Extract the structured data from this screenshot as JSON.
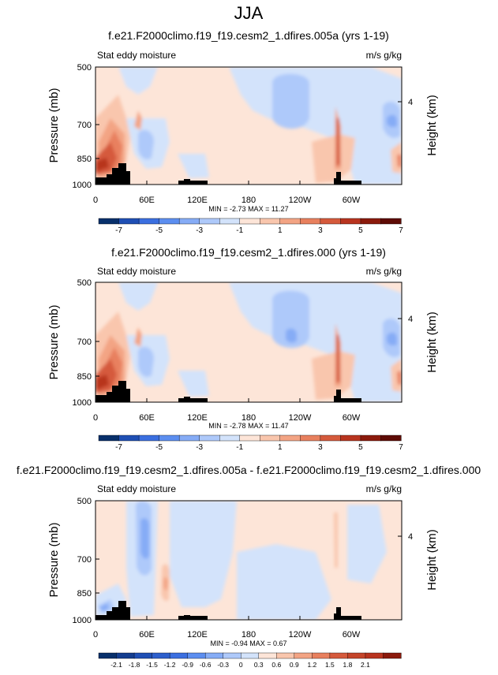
{
  "page_title": "JJA",
  "chart_data": [
    {
      "type": "heatmap",
      "title": "f.e21.F2000climo.f19_f19.cesm2_1.dfires.005a (yrs 1-19)",
      "left_label": "Stat eddy moisture",
      "right_label": "m/s g/kg",
      "ylabel": "Pressure (mb)",
      "ylabel_right": "Height (km)",
      "y_ticks": [
        "500",
        "700",
        "850",
        "1000"
      ],
      "y_right_ticks": [
        "4"
      ],
      "x_ticks": [
        "0",
        "60E",
        "120E",
        "180",
        "120W",
        "60W"
      ],
      "min_max_text": "MIN = -2.73  MAX = 11.27",
      "colorbar_labels": [
        "-7",
        "-5",
        "-3",
        "-1",
        "1",
        "3",
        "5",
        "7"
      ],
      "colorbar_colors": [
        "#08306b",
        "#1f4fb4",
        "#3b6fe0",
        "#5c8ef0",
        "#86acf6",
        "#aec9fa",
        "#d3e3fb",
        "#fde5d8",
        "#f9c6ad",
        "#f3a484",
        "#e8805e",
        "#d55a3c",
        "#b8341f",
        "#8b1a0c",
        "#5e0b05"
      ]
    },
    {
      "type": "heatmap",
      "title": "f.e21.F2000climo.f19_f19.cesm2_1.dfires.000 (yrs 1-19)",
      "left_label": "Stat eddy moisture",
      "right_label": "m/s g/kg",
      "ylabel": "Pressure (mb)",
      "ylabel_right": "Height (km)",
      "y_ticks": [
        "500",
        "700",
        "850",
        "1000"
      ],
      "y_right_ticks": [
        "4"
      ],
      "x_ticks": [
        "0",
        "60E",
        "120E",
        "180",
        "120W",
        "60W"
      ],
      "min_max_text": "MIN = -2.78  MAX = 11.47",
      "colorbar_labels": [
        "-7",
        "-5",
        "-3",
        "-1",
        "1",
        "3",
        "5",
        "7"
      ],
      "colorbar_colors": [
        "#08306b",
        "#1f4fb4",
        "#3b6fe0",
        "#5c8ef0",
        "#86acf6",
        "#aec9fa",
        "#d3e3fb",
        "#fde5d8",
        "#f9c6ad",
        "#f3a484",
        "#e8805e",
        "#d55a3c",
        "#b8341f",
        "#8b1a0c",
        "#5e0b05"
      ]
    },
    {
      "type": "heatmap",
      "title": "f.e21.F2000climo.f19_f19.cesm2_1.dfires.005a - f.e21.F2000climo.f19_f19.cesm2_1.dfires.000",
      "left_label": "Stat eddy moisture",
      "right_label": "m/s g/kg",
      "ylabel": "Pressure (mb)",
      "ylabel_right": "Height (km)",
      "y_ticks": [
        "500",
        "700",
        "850",
        "1000"
      ],
      "y_right_ticks": [
        "4"
      ],
      "x_ticks": [
        "0",
        "60E",
        "120E",
        "180",
        "120W",
        "60W"
      ],
      "min_max_text": "MIN = -0.94  MAX = 0.67",
      "colorbar_labels": [
        "-2.1",
        "-1.8",
        "-1.5",
        "-1.2",
        "-0.9",
        "-0.6",
        "-0.3",
        "0",
        "0.3",
        "0.6",
        "0.9",
        "1.2",
        "1.5",
        "1.8",
        "2.1"
      ],
      "colorbar_colors": [
        "#08306b",
        "#143d8f",
        "#1f4fb4",
        "#2d5fcc",
        "#3b6fe0",
        "#5c8ef0",
        "#86acf6",
        "#aec9fa",
        "#d3e3fb",
        "#fde5d8",
        "#f9c6ad",
        "#f3a484",
        "#e8805e",
        "#d55a3c",
        "#c4442a",
        "#b8341f",
        "#8b1a0c"
      ]
    }
  ]
}
